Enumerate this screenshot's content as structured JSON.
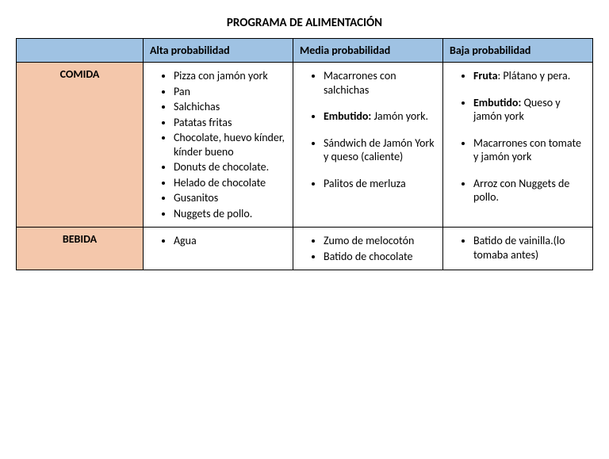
{
  "title": "PROGRAMA DE ALIMENTACIÓN",
  "colors": {
    "header_bg": "#9fc2e3",
    "rowheader_bg": "#f4c7ab",
    "border": "#000000",
    "text": "#000000",
    "page_bg": "#ffffff"
  },
  "typography": {
    "font_family": "Calibri, Arial, sans-serif",
    "base_font_size_pt": 11,
    "title_font_size_pt": 12,
    "title_weight": "bold",
    "header_weight": "bold"
  },
  "layout": {
    "columns": [
      "rowheader",
      "alta",
      "media",
      "baja"
    ],
    "column_widths_pct": [
      22,
      26,
      26,
      26
    ]
  },
  "table": {
    "columns": [
      {
        "key": "rowheader",
        "label": ""
      },
      {
        "key": "alta",
        "label": "Alta probabilidad"
      },
      {
        "key": "media",
        "label": "Media probabilidad"
      },
      {
        "key": "baja",
        "label": "Baja probabilidad"
      }
    ],
    "rows": [
      {
        "label": "COMIDA",
        "alta": [
          {
            "text": "Pizza con jamón york"
          },
          {
            "text": "Pan"
          },
          {
            "text": "Salchichas"
          },
          {
            "text": "Patatas fritas"
          },
          {
            "text": "Chocolate, huevo kínder, kínder bueno"
          },
          {
            "text": "Donuts de chocolate."
          },
          {
            "text": "Helado de chocolate"
          },
          {
            "text": "Gusanitos"
          },
          {
            "text": "Nuggets de pollo."
          }
        ],
        "media": [
          {
            "text": "Macarrones con salchichas",
            "gap_after": true
          },
          {
            "bold_lead": "Embutido:",
            "rest": " Jamón york.",
            "gap_after": true
          },
          {
            "text": "Sándwich de Jamón York y queso (caliente)",
            "gap_after": true
          },
          {
            "text": "Palitos de merluza"
          }
        ],
        "baja": [
          {
            "bold_lead": "Fruta",
            "rest": ": Plátano y pera.",
            "gap_after": true
          },
          {
            "bold_lead": "Embutido:",
            "rest": " Queso y jamón york",
            "gap_after": true
          },
          {
            "text": "Macarrones con tomate y jamón york",
            "gap_after": true
          },
          {
            "text": "Arroz con Nuggets de pollo."
          }
        ]
      },
      {
        "label": "BEBIDA",
        "alta": [
          {
            "text": "Agua"
          }
        ],
        "media": [
          {
            "text": "Zumo de melocotón"
          },
          {
            "text": "Batido de chocolate"
          }
        ],
        "baja": [
          {
            "text": "Batido de vainilla.(lo tomaba antes)"
          }
        ]
      }
    ]
  }
}
